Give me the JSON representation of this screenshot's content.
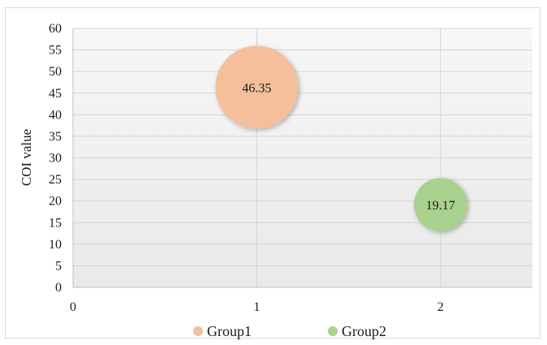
{
  "chart_data": {
    "type": "bubble",
    "title": "",
    "xlabel": "",
    "ylabel": "COI value",
    "xlim": [
      0,
      2.5
    ],
    "ylim": [
      0,
      60
    ],
    "x_ticks": [
      0,
      1,
      2
    ],
    "y_ticks": [
      0,
      5,
      10,
      15,
      20,
      25,
      30,
      35,
      40,
      45,
      50,
      55,
      60
    ],
    "grid": true,
    "legend_position": "bottom",
    "series": [
      {
        "name": "Group1",
        "x": 1,
        "y": 46.35,
        "size": 46.35,
        "label": "46.35",
        "color": "#f4bf9a"
      },
      {
        "name": "Group2",
        "x": 2,
        "y": 19.17,
        "size": 19.17,
        "label": "19.17",
        "color": "#a9d18e"
      }
    ]
  }
}
